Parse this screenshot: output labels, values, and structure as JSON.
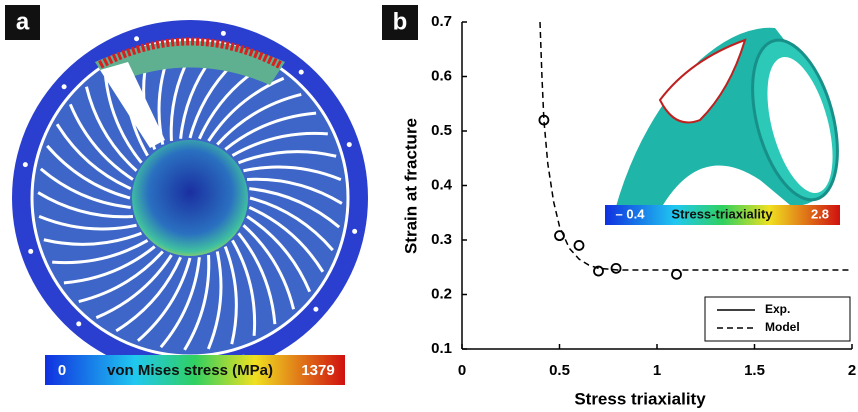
{
  "panel_a": {
    "label": "a",
    "colorbar": {
      "min_label": "0",
      "title": "von Mises stress (MPa)",
      "max_label": "1379"
    }
  },
  "chart_data": {
    "type": "line",
    "panel_label": "b",
    "xlabel": "Stress triaxiality",
    "ylabel": "Strain at fracture",
    "xlim": [
      0,
      2
    ],
    "ylim": [
      0.1,
      0.7
    ],
    "xticks": [
      0,
      0.5,
      1,
      1.5,
      2
    ],
    "yticks": [
      0.1,
      0.2,
      0.3,
      0.4,
      0.5,
      0.6,
      0.7
    ],
    "legend": "lower right",
    "series": [
      {
        "name": "Exp.",
        "mode": "markers",
        "linestyle": "solid",
        "color": "#000000",
        "x": [
          0.42,
          0.5,
          0.6,
          0.7,
          0.79,
          1.1
        ],
        "values": [
          0.52,
          0.308,
          0.29,
          0.243,
          0.248,
          0.237
        ]
      },
      {
        "name": "Model",
        "mode": "lines",
        "linestyle": "dashed",
        "color": "#000000",
        "x": [
          0.4,
          0.41,
          0.42,
          0.44,
          0.47,
          0.5,
          0.55,
          0.6,
          0.65,
          0.7,
          0.8,
          1,
          1.5,
          2
        ],
        "values": [
          0.7,
          0.6,
          0.52,
          0.44,
          0.37,
          0.325,
          0.285,
          0.265,
          0.254,
          0.248,
          0.245,
          0.245,
          0.245,
          0.245
        ]
      }
    ],
    "inset_colorbar": {
      "min_label": "– 0.4",
      "title": "Stress-triaxiality",
      "max_label": "2.8"
    }
  }
}
